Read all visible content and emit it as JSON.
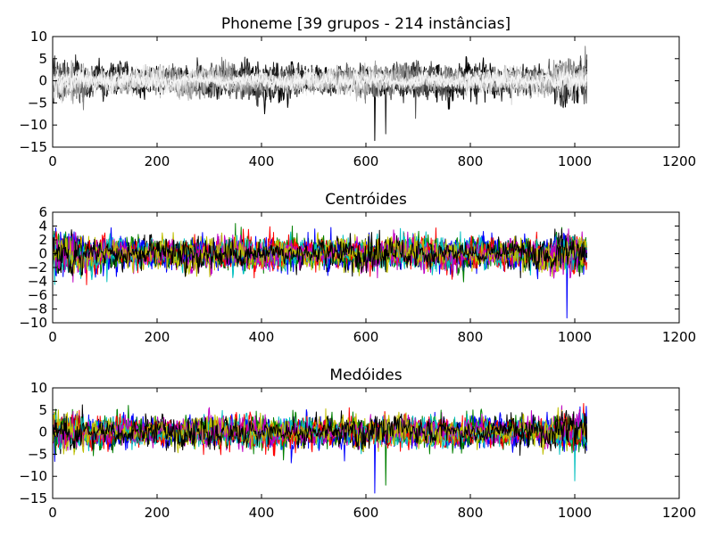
{
  "chart_data": [
    {
      "type": "line",
      "title": "Phoneme [39 grupos - 214 instâncias]",
      "xlim": [
        0,
        1200
      ],
      "ylim": [
        -15,
        10
      ],
      "xticks": [
        "0",
        "200",
        "400",
        "600",
        "800",
        "1000",
        "1200"
      ],
      "yticks": [
        "10",
        "5",
        "0",
        "−5",
        "−10",
        "−15"
      ],
      "n_points": 1024,
      "color_scheme": "grayscale",
      "series_colors": [
        "#000000",
        "#2a2a2a",
        "#555555",
        "#808080",
        "#a0a0a0",
        "#bdbdbd",
        "#d8d8d8",
        "#ececec",
        "#f6f6f6"
      ],
      "approx_range": [
        -13.5,
        8
      ],
      "notable_spikes": [
        {
          "x": 617,
          "y": -13.5
        },
        {
          "x": 638,
          "y": -12
        },
        {
          "x": 695,
          "y": -8.5
        },
        {
          "x": 1020,
          "y": 7.8
        }
      ]
    },
    {
      "type": "line",
      "title": "Centróides",
      "xlim": [
        0,
        1200
      ],
      "ylim": [
        -10,
        6
      ],
      "xticks": [
        "0",
        "200",
        "400",
        "600",
        "800",
        "1000",
        "1200"
      ],
      "yticks": [
        "6",
        "4",
        "2",
        "0",
        "−2",
        "−4",
        "−6",
        "−8",
        "−10"
      ],
      "n_points": 1024,
      "color_scheme": "matplotlib-classic",
      "series_colors": [
        "#0000ff",
        "#008000",
        "#ff0000",
        "#00bfbf",
        "#bf00bf",
        "#bfbf00",
        "#000000"
      ],
      "approx_range": [
        -9.3,
        4
      ],
      "notable_spikes": [
        {
          "x": 985,
          "y": -9.3
        },
        {
          "x": 975,
          "y": 3.8
        },
        {
          "x": 65,
          "y": -4.5
        }
      ]
    },
    {
      "type": "line",
      "title": "Medóides",
      "xlim": [
        0,
        1200
      ],
      "ylim": [
        -15,
        10
      ],
      "xticks": [
        "0",
        "200",
        "400",
        "600",
        "800",
        "1000",
        "1200"
      ],
      "yticks": [
        "10",
        "5",
        "0",
        "−5",
        "−10",
        "−15"
      ],
      "n_points": 1024,
      "color_scheme": "matplotlib-classic",
      "series_colors": [
        "#0000ff",
        "#008000",
        "#ff0000",
        "#00bfbf",
        "#bf00bf",
        "#bfbf00",
        "#000000"
      ],
      "approx_range": [
        -13.8,
        5.5
      ],
      "notable_spikes": [
        {
          "x": 617,
          "y": -13.8
        },
        {
          "x": 638,
          "y": -12
        },
        {
          "x": 568,
          "y": 5.5
        },
        {
          "x": 1000,
          "y": -11
        }
      ]
    }
  ]
}
